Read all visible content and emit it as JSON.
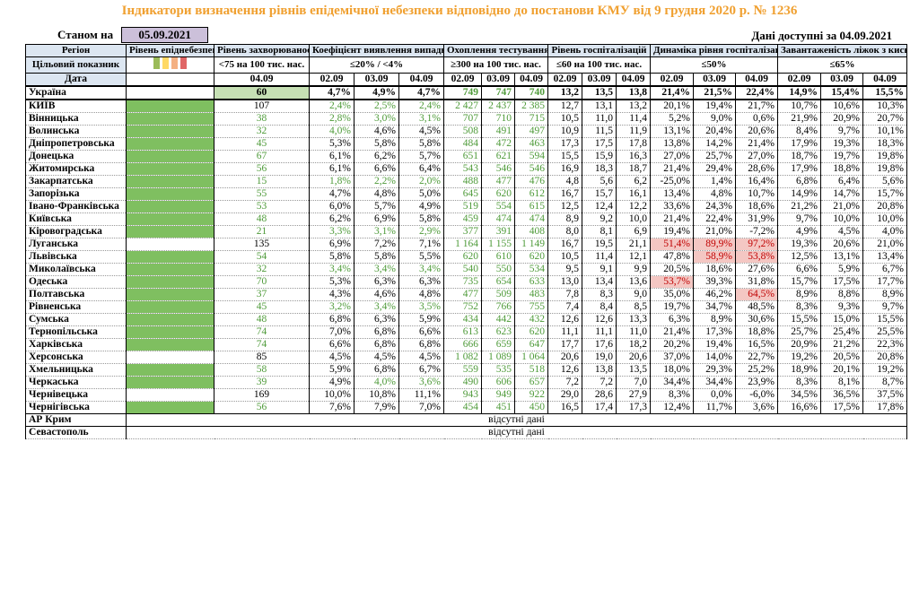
{
  "title": "Індикатори визначення рівнів епідемічної небезпеки відповідно до постанови КМУ від 9 грудня 2020 р. № 1236",
  "as_of_label": "Станом на",
  "as_of_date": "05.09.2021",
  "data_available": "Дані доступні за 04.09.2021",
  "headers": {
    "region": "Регіон",
    "level": "Рівень епіднебезпеки",
    "incidence": "Рівень захворюваності",
    "detection": "Коефіцієнт виявлення випадків інфікування",
    "testing": "Охоплення тестуванням",
    "hosp": "Рівень госпіталізацій",
    "dyn": "Динаміка рівня госпіталізацій",
    "oxygen": "Завантаженість ліжок з киснем"
  },
  "target": {
    "label": "Цільовий показник",
    "incidence": "<75 на 100 тис. нас.",
    "detection": "≤20% / <4%",
    "testing": "≥300 на 100 тис. нас.",
    "hosp": "≤60 на 100 тис. нас.",
    "dyn": "≤50%",
    "oxygen": "≤65%"
  },
  "level_colors": [
    "#9bbb59",
    "#ffd966",
    "#f4b183",
    "#e06666"
  ],
  "date_row": {
    "label": "Дата",
    "incidence": "04.09",
    "d": [
      "02.09",
      "03.09",
      "04.09"
    ]
  },
  "ukraine": {
    "name": "Україна",
    "inc": "60",
    "det": [
      "4,7%",
      "4,9%",
      "4,7%"
    ],
    "test": [
      "749",
      "747",
      "740"
    ],
    "hosp": [
      "13,2",
      "13,5",
      "13,8"
    ],
    "dyn": [
      "21,4%",
      "21,5%",
      "22,4%"
    ],
    "oxy": [
      "14,9%",
      "15,4%",
      "15,5%"
    ]
  },
  "regions": [
    {
      "name": "КИЇВ",
      "green": true,
      "inc": "107",
      "incg": false,
      "det": [
        "2,4%",
        "2,5%",
        "2,4%"
      ],
      "detg": [
        1,
        1,
        1
      ],
      "test": [
        "2 427",
        "2 437",
        "2 385"
      ],
      "hosp": [
        "12,7",
        "13,1",
        "13,2"
      ],
      "dyn": [
        "20,1%",
        "19,4%",
        "21,7%"
      ],
      "dynr": [
        0,
        0,
        0
      ],
      "oxy": [
        "10,7%",
        "10,6%",
        "10,3%"
      ]
    },
    {
      "name": "Вінницька",
      "green": true,
      "inc": "38",
      "incg": true,
      "det": [
        "2,8%",
        "3,0%",
        "3,1%"
      ],
      "detg": [
        1,
        1,
        1
      ],
      "test": [
        "707",
        "710",
        "715"
      ],
      "hosp": [
        "10,5",
        "11,0",
        "11,4"
      ],
      "dyn": [
        "5,2%",
        "9,0%",
        "0,6%"
      ],
      "dynr": [
        0,
        0,
        0
      ],
      "oxy": [
        "21,9%",
        "20,9%",
        "20,7%"
      ]
    },
    {
      "name": "Волинська",
      "green": true,
      "inc": "32",
      "incg": true,
      "det": [
        "4,0%",
        "4,6%",
        "4,5%"
      ],
      "detg": [
        1,
        0,
        0
      ],
      "test": [
        "508",
        "491",
        "497"
      ],
      "hosp": [
        "10,9",
        "11,5",
        "11,9"
      ],
      "dyn": [
        "13,1%",
        "20,4%",
        "20,6%"
      ],
      "dynr": [
        0,
        0,
        0
      ],
      "oxy": [
        "8,4%",
        "9,7%",
        "10,1%"
      ]
    },
    {
      "name": "Дніпропетровська",
      "green": true,
      "inc": "45",
      "incg": true,
      "det": [
        "5,3%",
        "5,8%",
        "5,8%"
      ],
      "detg": [
        0,
        0,
        0
      ],
      "test": [
        "484",
        "472",
        "463"
      ],
      "hosp": [
        "17,3",
        "17,5",
        "17,8"
      ],
      "dyn": [
        "13,8%",
        "14,2%",
        "21,4%"
      ],
      "dynr": [
        0,
        0,
        0
      ],
      "oxy": [
        "17,9%",
        "19,3%",
        "18,3%"
      ]
    },
    {
      "name": "Донецька",
      "green": true,
      "inc": "67",
      "incg": true,
      "det": [
        "6,1%",
        "6,2%",
        "5,7%"
      ],
      "detg": [
        0,
        0,
        0
      ],
      "test": [
        "651",
        "621",
        "594"
      ],
      "hosp": [
        "15,5",
        "15,9",
        "16,3"
      ],
      "dyn": [
        "27,0%",
        "25,7%",
        "27,0%"
      ],
      "dynr": [
        0,
        0,
        0
      ],
      "oxy": [
        "18,7%",
        "19,7%",
        "19,8%"
      ]
    },
    {
      "name": "Житомирська",
      "green": true,
      "inc": "56",
      "incg": true,
      "det": [
        "6,1%",
        "6,6%",
        "6,4%"
      ],
      "detg": [
        0,
        0,
        0
      ],
      "test": [
        "543",
        "546",
        "546"
      ],
      "hosp": [
        "16,9",
        "18,3",
        "18,7"
      ],
      "dyn": [
        "21,4%",
        "29,4%",
        "28,6%"
      ],
      "dynr": [
        0,
        0,
        0
      ],
      "oxy": [
        "17,9%",
        "18,8%",
        "19,8%"
      ]
    },
    {
      "name": "Закарпатська",
      "green": true,
      "inc": "15",
      "incg": true,
      "det": [
        "1,8%",
        "2,2%",
        "2,0%"
      ],
      "detg": [
        1,
        1,
        1
      ],
      "test": [
        "488",
        "477",
        "476"
      ],
      "hosp": [
        "4,8",
        "5,6",
        "6,2"
      ],
      "dyn": [
        "-25,0%",
        "1,4%",
        "16,4%"
      ],
      "dynr": [
        0,
        0,
        0
      ],
      "oxy": [
        "6,8%",
        "6,4%",
        "5,6%"
      ]
    },
    {
      "name": "Запорізька",
      "green": true,
      "inc": "55",
      "incg": true,
      "det": [
        "4,7%",
        "4,8%",
        "5,0%"
      ],
      "detg": [
        0,
        0,
        0
      ],
      "test": [
        "645",
        "620",
        "612"
      ],
      "hosp": [
        "16,7",
        "15,7",
        "16,1"
      ],
      "dyn": [
        "13,4%",
        "4,8%",
        "10,7%"
      ],
      "dynr": [
        0,
        0,
        0
      ],
      "oxy": [
        "14,9%",
        "14,7%",
        "15,7%"
      ]
    },
    {
      "name": "Івано-Франківська",
      "tall": true,
      "green": true,
      "inc": "53",
      "incg": true,
      "det": [
        "6,0%",
        "5,7%",
        "4,9%"
      ],
      "detg": [
        0,
        0,
        0
      ],
      "test": [
        "519",
        "554",
        "615"
      ],
      "hosp": [
        "12,5",
        "12,4",
        "12,2"
      ],
      "dyn": [
        "33,6%",
        "24,3%",
        "18,6%"
      ],
      "dynr": [
        0,
        0,
        0
      ],
      "oxy": [
        "21,2%",
        "21,0%",
        "20,8%"
      ]
    },
    {
      "name": "Київська",
      "green": true,
      "inc": "48",
      "incg": true,
      "det": [
        "6,2%",
        "6,9%",
        "5,8%"
      ],
      "detg": [
        0,
        0,
        0
      ],
      "test": [
        "459",
        "474",
        "474"
      ],
      "hosp": [
        "8,9",
        "9,2",
        "10,0"
      ],
      "dyn": [
        "21,4%",
        "22,4%",
        "31,9%"
      ],
      "dynr": [
        0,
        0,
        0
      ],
      "oxy": [
        "9,7%",
        "10,0%",
        "10,0%"
      ]
    },
    {
      "name": "Кіровоградська",
      "green": true,
      "inc": "21",
      "incg": true,
      "det": [
        "3,3%",
        "3,1%",
        "2,9%"
      ],
      "detg": [
        1,
        1,
        1
      ],
      "test": [
        "377",
        "391",
        "408"
      ],
      "hosp": [
        "8,0",
        "8,1",
        "6,9"
      ],
      "dyn": [
        "19,4%",
        "21,0%",
        "-7,2%"
      ],
      "dynr": [
        0,
        0,
        0
      ],
      "oxy": [
        "4,9%",
        "4,5%",
        "4,0%"
      ]
    },
    {
      "name": "Луганська",
      "green": false,
      "inc": "135",
      "incg": false,
      "det": [
        "6,9%",
        "7,2%",
        "7,1%"
      ],
      "detg": [
        0,
        0,
        0
      ],
      "test": [
        "1 164",
        "1 155",
        "1 149"
      ],
      "hosp": [
        "16,7",
        "19,5",
        "21,1"
      ],
      "dyn": [
        "51,4%",
        "89,9%",
        "97,2%"
      ],
      "dynr": [
        1,
        1,
        1
      ],
      "oxy": [
        "19,3%",
        "20,6%",
        "21,0%"
      ]
    },
    {
      "name": "Львівська",
      "green": true,
      "inc": "54",
      "incg": true,
      "det": [
        "5,8%",
        "5,8%",
        "5,5%"
      ],
      "detg": [
        0,
        0,
        0
      ],
      "test": [
        "620",
        "610",
        "620"
      ],
      "hosp": [
        "10,5",
        "11,4",
        "12,1"
      ],
      "dyn": [
        "47,8%",
        "58,9%",
        "53,8%"
      ],
      "dynr": [
        0,
        1,
        1
      ],
      "oxy": [
        "12,5%",
        "13,1%",
        "13,4%"
      ]
    },
    {
      "name": "Миколаївська",
      "green": true,
      "inc": "32",
      "incg": true,
      "det": [
        "3,4%",
        "3,4%",
        "3,4%"
      ],
      "detg": [
        1,
        1,
        1
      ],
      "test": [
        "540",
        "550",
        "534"
      ],
      "hosp": [
        "9,5",
        "9,1",
        "9,9"
      ],
      "dyn": [
        "20,5%",
        "18,6%",
        "27,6%"
      ],
      "dynr": [
        0,
        0,
        0
      ],
      "oxy": [
        "6,6%",
        "5,9%",
        "6,7%"
      ]
    },
    {
      "name": "Одеська",
      "green": true,
      "inc": "70",
      "incg": true,
      "det": [
        "5,3%",
        "6,3%",
        "6,3%"
      ],
      "detg": [
        0,
        0,
        0
      ],
      "test": [
        "735",
        "654",
        "633"
      ],
      "hosp": [
        "13,0",
        "13,4",
        "13,6"
      ],
      "dyn": [
        "53,7%",
        "39,3%",
        "31,8%"
      ],
      "dynr": [
        1,
        0,
        0
      ],
      "oxy": [
        "15,7%",
        "17,5%",
        "17,7%"
      ]
    },
    {
      "name": "Полтавська",
      "green": true,
      "inc": "37",
      "incg": true,
      "det": [
        "4,3%",
        "4,6%",
        "4,8%"
      ],
      "detg": [
        0,
        0,
        0
      ],
      "test": [
        "477",
        "509",
        "483"
      ],
      "hosp": [
        "7,8",
        "8,3",
        "9,0"
      ],
      "dyn": [
        "35,0%",
        "46,2%",
        "64,5%"
      ],
      "dynr": [
        0,
        0,
        1
      ],
      "oxy": [
        "8,9%",
        "8,8%",
        "8,9%"
      ]
    },
    {
      "name": "Рівненська",
      "green": true,
      "inc": "45",
      "incg": true,
      "det": [
        "3,2%",
        "3,4%",
        "3,5%"
      ],
      "detg": [
        1,
        1,
        1
      ],
      "test": [
        "752",
        "766",
        "755"
      ],
      "hosp": [
        "7,4",
        "8,4",
        "8,5"
      ],
      "dyn": [
        "19,7%",
        "34,7%",
        "48,5%"
      ],
      "dynr": [
        0,
        0,
        0
      ],
      "oxy": [
        "8,3%",
        "9,3%",
        "9,7%"
      ]
    },
    {
      "name": "Сумська",
      "green": true,
      "inc": "48",
      "incg": true,
      "det": [
        "6,8%",
        "6,3%",
        "5,9%"
      ],
      "detg": [
        0,
        0,
        0
      ],
      "test": [
        "434",
        "442",
        "432"
      ],
      "hosp": [
        "12,6",
        "12,6",
        "13,3"
      ],
      "dyn": [
        "6,3%",
        "8,9%",
        "30,6%"
      ],
      "dynr": [
        0,
        0,
        0
      ],
      "oxy": [
        "15,5%",
        "15,0%",
        "15,5%"
      ]
    },
    {
      "name": "Тернопільська",
      "green": true,
      "inc": "74",
      "incg": true,
      "det": [
        "7,0%",
        "6,8%",
        "6,6%"
      ],
      "detg": [
        0,
        0,
        0
      ],
      "test": [
        "613",
        "623",
        "620"
      ],
      "hosp": [
        "11,1",
        "11,1",
        "11,0"
      ],
      "dyn": [
        "21,4%",
        "17,3%",
        "18,8%"
      ],
      "dynr": [
        0,
        0,
        0
      ],
      "oxy": [
        "25,7%",
        "25,4%",
        "25,5%"
      ]
    },
    {
      "name": "Харківська",
      "green": true,
      "inc": "74",
      "incg": true,
      "det": [
        "6,6%",
        "6,8%",
        "6,8%"
      ],
      "detg": [
        0,
        0,
        0
      ],
      "test": [
        "666",
        "659",
        "647"
      ],
      "hosp": [
        "17,7",
        "17,6",
        "18,2"
      ],
      "dyn": [
        "20,2%",
        "19,4%",
        "16,5%"
      ],
      "dynr": [
        0,
        0,
        0
      ],
      "oxy": [
        "20,9%",
        "21,2%",
        "22,3%"
      ]
    },
    {
      "name": "Херсонська",
      "green": false,
      "inc": "85",
      "incg": false,
      "det": [
        "4,5%",
        "4,5%",
        "4,5%"
      ],
      "detg": [
        0,
        0,
        0
      ],
      "test": [
        "1 082",
        "1 089",
        "1 064"
      ],
      "hosp": [
        "20,6",
        "19,0",
        "20,6"
      ],
      "dyn": [
        "37,0%",
        "14,0%",
        "22,7%"
      ],
      "dynr": [
        0,
        0,
        0
      ],
      "oxy": [
        "19,2%",
        "20,5%",
        "20,8%"
      ]
    },
    {
      "name": "Хмельницька",
      "green": true,
      "inc": "58",
      "incg": true,
      "det": [
        "5,9%",
        "6,8%",
        "6,7%"
      ],
      "detg": [
        0,
        0,
        0
      ],
      "test": [
        "559",
        "535",
        "518"
      ],
      "hosp": [
        "12,6",
        "13,8",
        "13,5"
      ],
      "dyn": [
        "18,0%",
        "29,3%",
        "25,2%"
      ],
      "dynr": [
        0,
        0,
        0
      ],
      "oxy": [
        "18,9%",
        "20,1%",
        "19,2%"
      ]
    },
    {
      "name": "Черкаська",
      "green": true,
      "inc": "39",
      "incg": true,
      "det": [
        "4,9%",
        "4,0%",
        "3,6%"
      ],
      "detg": [
        0,
        1,
        1
      ],
      "test": [
        "490",
        "606",
        "657"
      ],
      "hosp": [
        "7,2",
        "7,2",
        "7,0"
      ],
      "dyn": [
        "34,4%",
        "34,4%",
        "23,9%"
      ],
      "dynr": [
        0,
        0,
        0
      ],
      "oxy": [
        "8,3%",
        "8,1%",
        "8,7%"
      ]
    },
    {
      "name": "Чернівецька",
      "green": false,
      "inc": "169",
      "incg": false,
      "det": [
        "10,0%",
        "10,8%",
        "11,1%"
      ],
      "detg": [
        0,
        0,
        0
      ],
      "test": [
        "943",
        "949",
        "922"
      ],
      "hosp": [
        "29,0",
        "28,6",
        "27,9"
      ],
      "dyn": [
        "8,3%",
        "0,0%",
        "-6,0%"
      ],
      "dynr": [
        0,
        0,
        0
      ],
      "oxy": [
        "34,5%",
        "36,5%",
        "37,5%"
      ]
    },
    {
      "name": "Чернігівська",
      "green": true,
      "inc": "56",
      "incg": true,
      "det": [
        "7,6%",
        "7,9%",
        "7,0%"
      ],
      "detg": [
        0,
        0,
        0
      ],
      "test": [
        "454",
        "451",
        "450"
      ],
      "hosp": [
        "16,5",
        "17,4",
        "17,3"
      ],
      "dyn": [
        "12,4%",
        "11,7%",
        "3,6%"
      ],
      "dynr": [
        0,
        0,
        0
      ],
      "oxy": [
        "16,6%",
        "17,5%",
        "17,8%"
      ]
    }
  ],
  "absent": [
    {
      "name": "АР Крим",
      "note": "відсутні дані"
    },
    {
      "name": "Севастополь",
      "note": "відсутні дані"
    }
  ]
}
